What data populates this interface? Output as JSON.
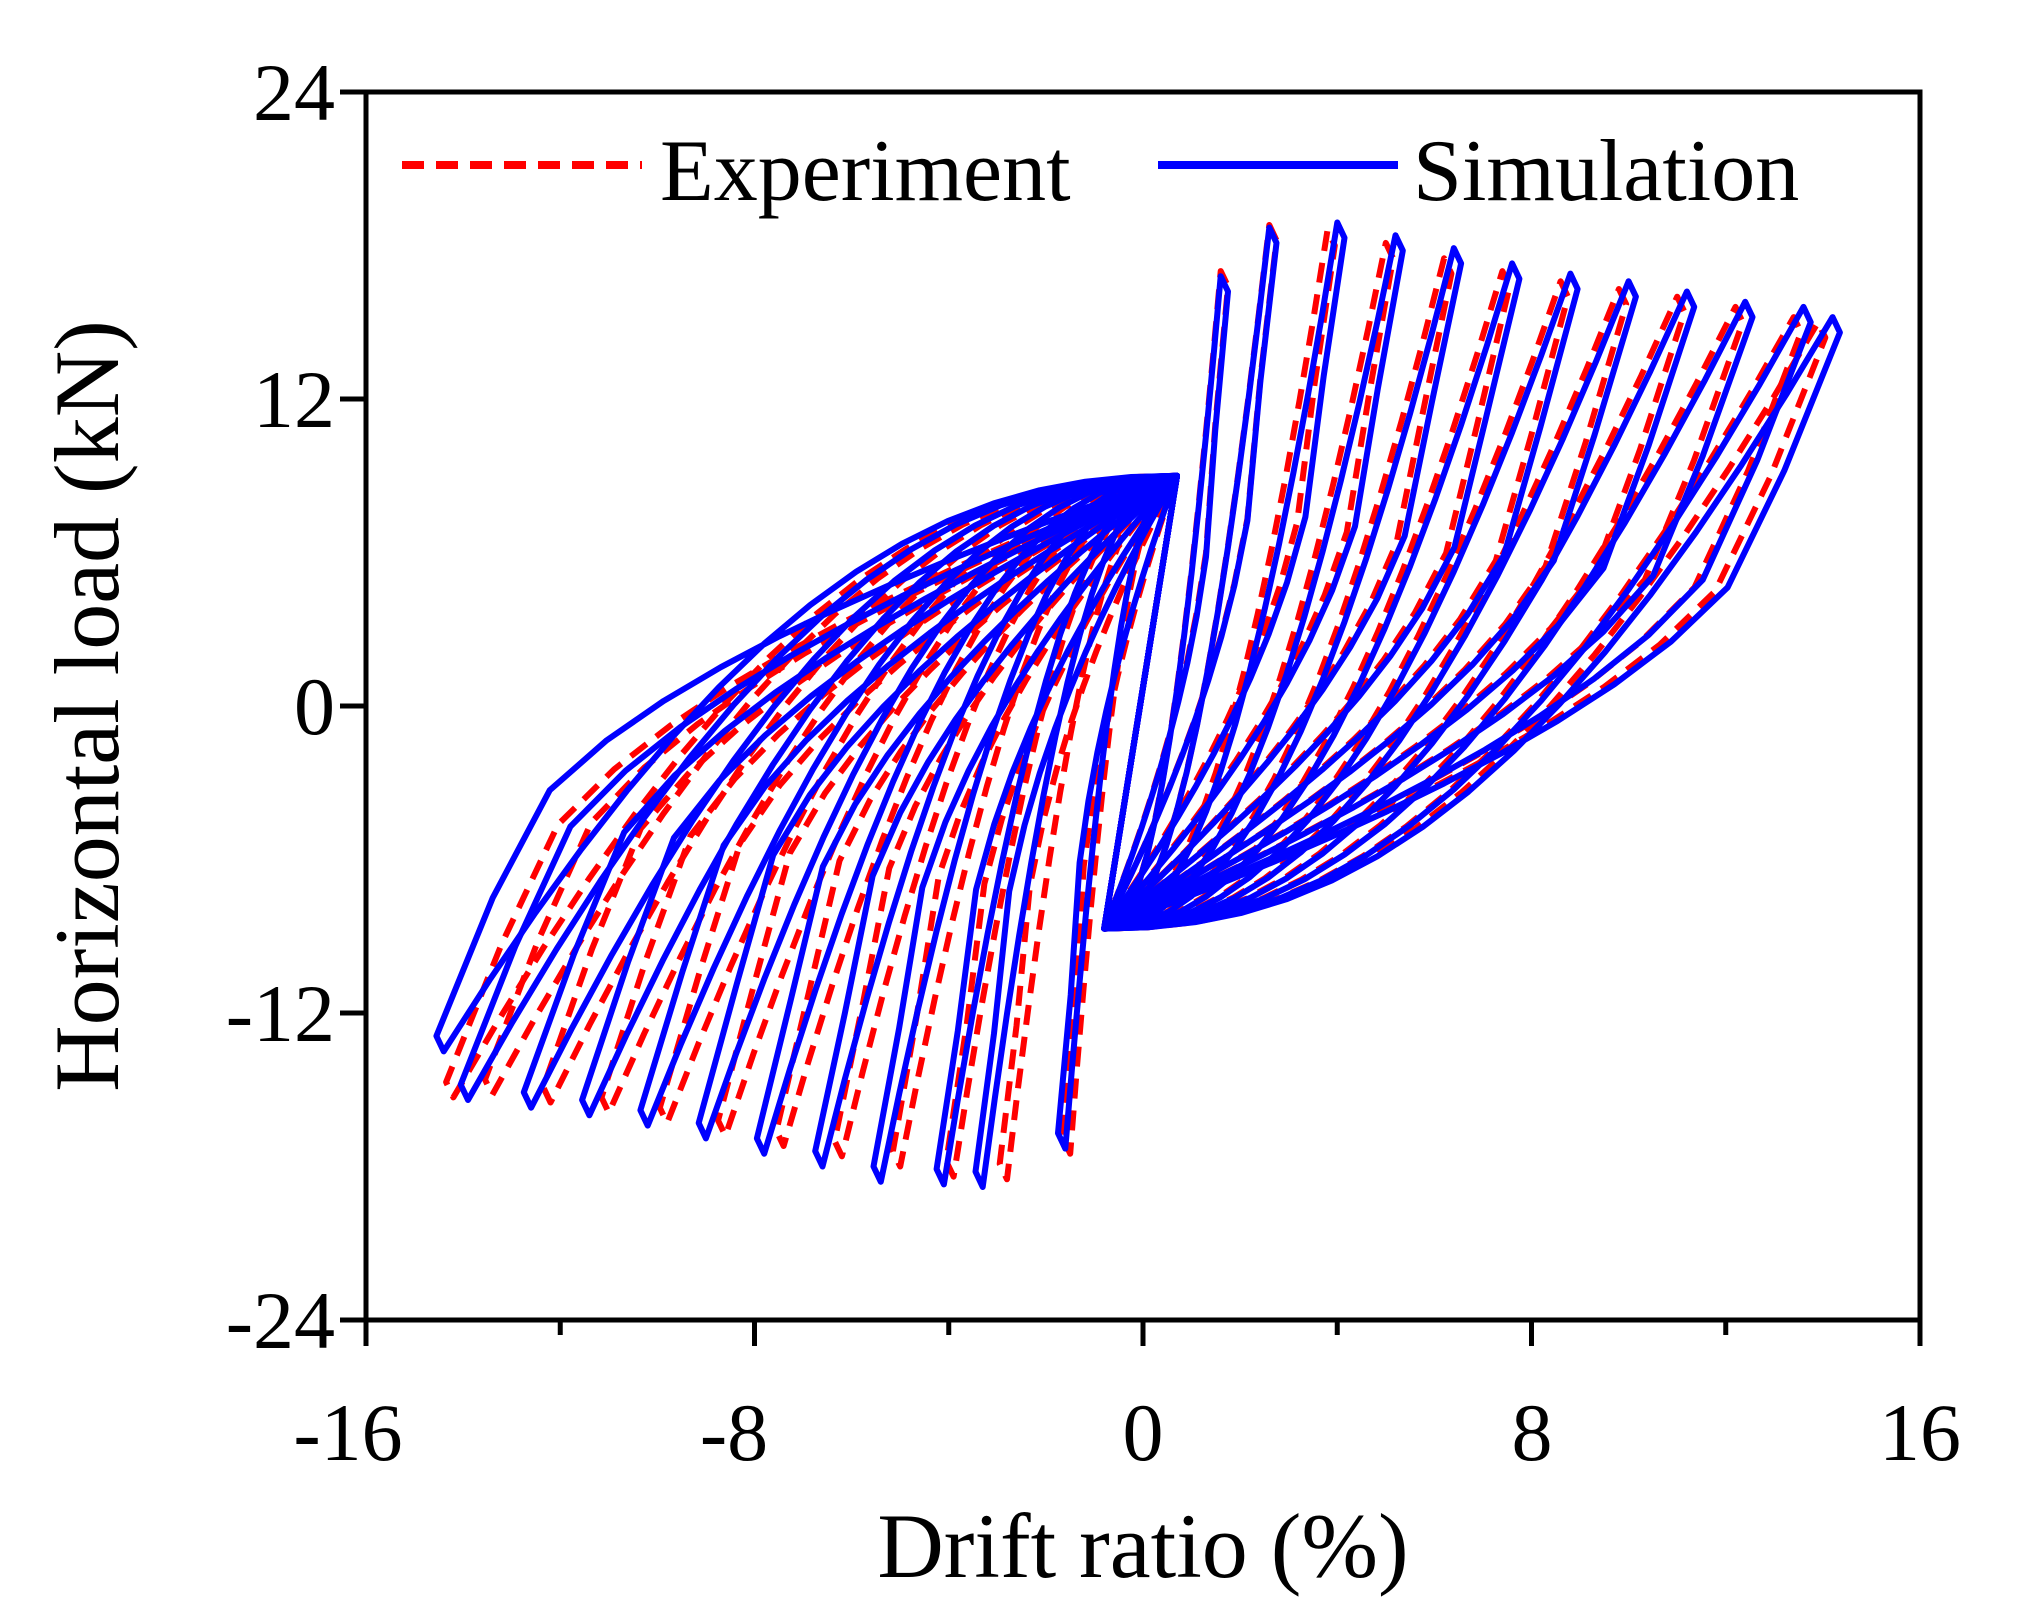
{
  "chart_data": {
    "type": "line",
    "title": "",
    "xlabel": "Drift ratio (%)",
    "ylabel": "Horizontal load (kN)",
    "xlim": [
      -16,
      16
    ],
    "ylim": [
      -24,
      24
    ],
    "xticks": [
      "-16",
      "-8",
      "0",
      "8",
      "16"
    ],
    "yticks": [
      "24",
      "12",
      "0",
      "-12",
      "-24"
    ],
    "xtick_values": [
      -16,
      -8,
      0,
      8,
      16
    ],
    "ytick_values": [
      24,
      12,
      0,
      -12,
      -24
    ],
    "x_minor_tick_values": [
      -12,
      -4,
      4,
      12
    ],
    "grid": false,
    "legend": {
      "position": "top",
      "entries": [
        "Experiment",
        "Simulation"
      ]
    },
    "hysteresis_model": {
      "description": "Cyclic hysteresis loops, one per amplitude level; values estimated from the figure",
      "pinch_point_positive": [
        0.7,
        9.0
      ],
      "pinch_point_negative": [
        -0.8,
        -8.7
      ],
      "unload_drop_kN": 6.0
    },
    "series": [
      {
        "name": "Experiment",
        "color": "#ff0000",
        "style": "dashed",
        "loops": [
          {
            "d_pos": 1.6,
            "f_pos": 17.0,
            "d_neg": -1.5,
            "f_neg": -17.5
          },
          {
            "d_pos": 2.6,
            "f_pos": 18.8,
            "d_neg": -2.8,
            "f_neg": -18.5
          },
          {
            "d_pos": 3.8,
            "f_pos": 18.6,
            "d_neg": -3.9,
            "f_neg": -18.4
          },
          {
            "d_pos": 5.0,
            "f_pos": 18.1,
            "d_neg": -5.0,
            "f_neg": -18.0
          },
          {
            "d_pos": 6.2,
            "f_pos": 17.5,
            "d_neg": -6.2,
            "f_neg": -17.6
          },
          {
            "d_pos": 7.4,
            "f_pos": 17.0,
            "d_neg": -7.4,
            "f_neg": -17.2
          },
          {
            "d_pos": 8.6,
            "f_pos": 16.6,
            "d_neg": -8.6,
            "f_neg": -16.8
          },
          {
            "d_pos": 9.8,
            "f_pos": 16.3,
            "d_neg": -9.8,
            "f_neg": -16.3
          },
          {
            "d_pos": 11.0,
            "f_pos": 16.0,
            "d_neg": -11.0,
            "f_neg": -15.9
          },
          {
            "d_pos": 12.2,
            "f_pos": 15.6,
            "d_neg": -12.2,
            "f_neg": -15.5
          },
          {
            "d_pos": 13.4,
            "f_pos": 15.2,
            "d_neg": -13.4,
            "f_neg": -15.2
          },
          {
            "d_pos": 13.9,
            "f_pos": 15.0,
            "d_neg": -14.2,
            "f_neg": -15.3
          }
        ]
      },
      {
        "name": "Simulation",
        "color": "#0000ff",
        "style": "solid",
        "loops": [
          {
            "d_pos": 1.6,
            "f_pos": 16.8,
            "d_neg": -1.6,
            "f_neg": -17.3
          },
          {
            "d_pos": 2.6,
            "f_pos": 18.7,
            "d_neg": -3.3,
            "f_neg": -18.8
          },
          {
            "d_pos": 4.0,
            "f_pos": 18.9,
            "d_neg": -4.1,
            "f_neg": -18.7
          },
          {
            "d_pos": 5.2,
            "f_pos": 18.4,
            "d_neg": -5.4,
            "f_neg": -18.6
          },
          {
            "d_pos": 6.4,
            "f_pos": 17.9,
            "d_neg": -6.6,
            "f_neg": -18.0
          },
          {
            "d_pos": 7.6,
            "f_pos": 17.3,
            "d_neg": -7.8,
            "f_neg": -17.5
          },
          {
            "d_pos": 8.8,
            "f_pos": 16.9,
            "d_neg": -9.0,
            "f_neg": -16.9
          },
          {
            "d_pos": 10.0,
            "f_pos": 16.6,
            "d_neg": -10.2,
            "f_neg": -16.4
          },
          {
            "d_pos": 11.2,
            "f_pos": 16.2,
            "d_neg": -11.4,
            "f_neg": -16.0
          },
          {
            "d_pos": 12.4,
            "f_pos": 15.8,
            "d_neg": -12.6,
            "f_neg": -15.7
          },
          {
            "d_pos": 13.6,
            "f_pos": 15.6,
            "d_neg": -13.9,
            "f_neg": -15.4
          },
          {
            "d_pos": 14.2,
            "f_pos": 15.2,
            "d_neg": -14.4,
            "f_neg": -13.5
          }
        ]
      }
    ]
  }
}
